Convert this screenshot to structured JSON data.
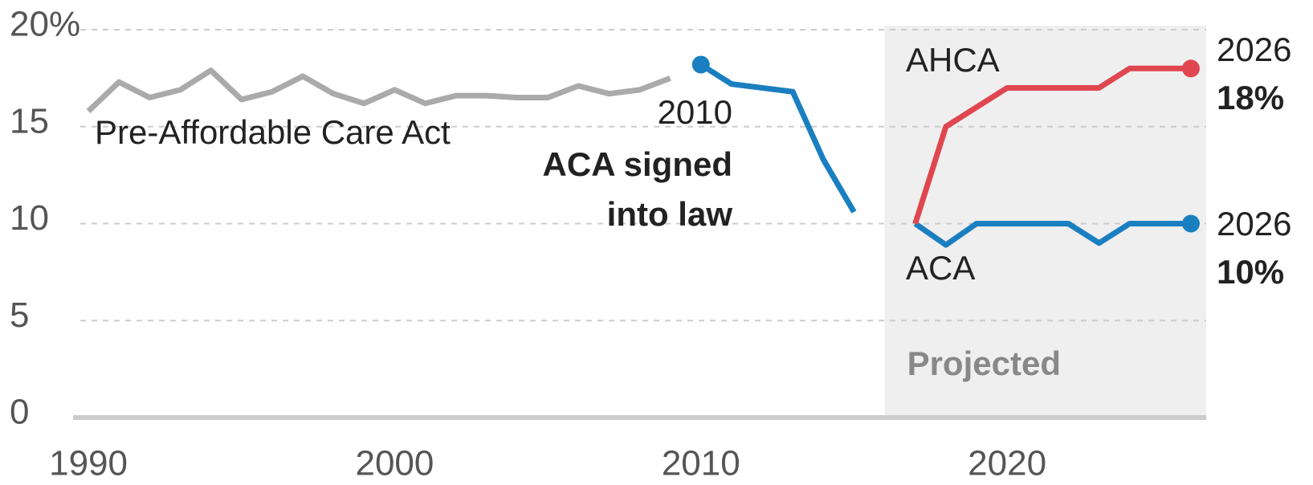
{
  "chart_data": {
    "type": "line",
    "xlim": [
      1989.5,
      2026.5
    ],
    "ylim": [
      0,
      20
    ],
    "xticks": [
      1990,
      2000,
      2010,
      2020
    ],
    "yticks": [
      0,
      5,
      10,
      15,
      {
        "value": 20,
        "label": "20%"
      }
    ],
    "grid": true,
    "shaded_region": {
      "label": "Projected",
      "xlim": [
        2016,
        2026.5
      ],
      "color": "#efefef"
    },
    "annotation": {
      "lines": [
        "ACA signed",
        "into law"
      ]
    },
    "series": [
      {
        "name": "Pre-Affordable Care Act",
        "color": "#aaaaaa",
        "x": [
          1990,
          1991,
          1992,
          1993,
          1994,
          1995,
          1996,
          1997,
          1998,
          1999,
          2000,
          2001,
          2002,
          2003,
          2004,
          2005,
          2006,
          2007,
          2008,
          2009
        ],
        "values": [
          15.8,
          17.3,
          16.5,
          16.9,
          17.9,
          16.4,
          16.8,
          17.6,
          16.7,
          16.2,
          16.9,
          16.2,
          16.6,
          16.6,
          16.5,
          16.5,
          17.1,
          16.7,
          16.9,
          17.5
        ]
      },
      {
        "name": "ACA",
        "color": "#1a7fc1",
        "x": [
          2010,
          2011,
          2012,
          2013,
          2014,
          2015,
          2016,
          2017,
          2018,
          2019,
          2020,
          2021,
          2022,
          2023,
          2024,
          2025,
          2026
        ],
        "values": [
          18.2,
          17.2,
          17.0,
          16.8,
          13.3,
          10.6,
          null,
          10,
          8.9,
          10,
          10,
          10,
          10,
          9,
          10,
          10,
          10
        ],
        "value_labels": [
          null,
          null,
          null,
          null,
          null,
          null,
          null,
          null,
          null,
          null,
          null,
          null,
          null,
          null,
          null,
          null,
          "10%"
        ]
      },
      {
        "name": "AHCA",
        "color": "#e0464f",
        "x": [
          2017,
          2018,
          2019,
          2020,
          2021,
          2022,
          2023,
          2024,
          2025,
          2026
        ],
        "values": [
          10,
          15,
          16,
          17,
          17,
          17,
          17,
          18,
          18,
          18
        ],
        "value_labels": [
          null,
          null,
          null,
          null,
          null,
          null,
          null,
          null,
          null,
          "18%"
        ]
      }
    ]
  }
}
